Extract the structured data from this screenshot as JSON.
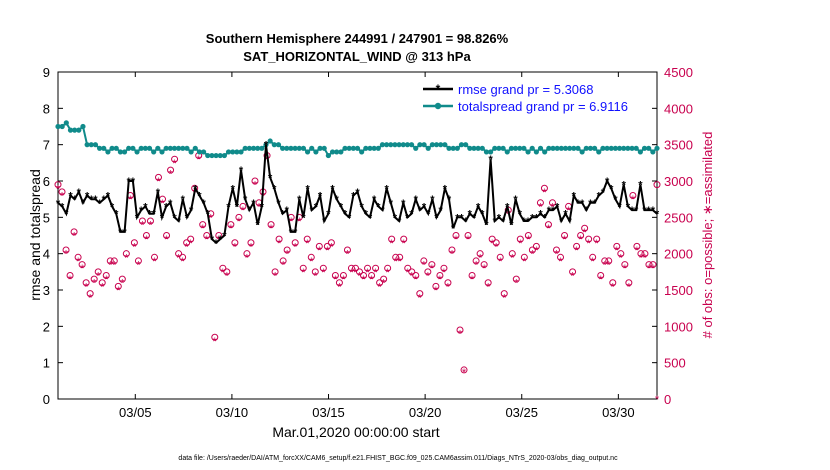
{
  "chart_data": {
    "type": "line",
    "title": "Southern Hemisphere 244991 / 247901 = 98.826%",
    "subtitle": "SAT_HORIZONTAL_WIND @ 313 hPa",
    "xlabel": "Mar.01,2020 00:00:00 start",
    "ylabel": "rmse and totalspread",
    "ylabel_right": "# of obs: o=possible; ∗=assimilated",
    "footnote": "data file: /Users/raeder/DAI/ATM_forcXX/CAM6_setup/f.e21.FHIST_BGC.f09_025.CAM6assim.011/Diags_NTrS_2020-03/obs_diag_output.nc",
    "xlim": [
      1,
      32
    ],
    "ylim": [
      0,
      9
    ],
    "ylim_right": [
      0,
      4500
    ],
    "x_ticks": [
      5,
      10,
      15,
      20,
      25,
      30
    ],
    "x_tick_labels": [
      "03/05",
      "03/10",
      "03/15",
      "03/20",
      "03/25",
      "03/30"
    ],
    "y_ticks": [
      0,
      1,
      2,
      3,
      4,
      5,
      6,
      7,
      8,
      9
    ],
    "y_ticks_right": [
      0,
      500,
      1000,
      1500,
      2000,
      2500,
      3000,
      3500,
      4000,
      4500
    ],
    "legend": [
      "rmse grand pr = 5.3068",
      "totalspread grand pr = 6.9116"
    ],
    "legend_position": "top-right",
    "colors": {
      "rmse": "#000000",
      "spread": "#108b8b",
      "obs": "#c8004e",
      "legend_text": "#1010ff"
    },
    "series": [
      {
        "name": "rmse",
        "values": [
          5.4,
          5.3,
          5.1,
          5.6,
          5.5,
          5.7,
          5.4,
          5.6,
          5.5,
          5.5,
          5.4,
          5.5,
          5.6,
          5.3,
          5.1,
          4.6,
          4.6,
          6.0,
          6.0,
          5.0,
          5.2,
          5.3,
          5.1,
          5.1,
          5.7,
          5.0,
          5.3,
          5.4,
          5.0,
          4.9,
          5.5,
          5.0,
          5.2,
          5.8,
          5.6,
          5.4,
          5.1,
          4.4,
          4.3,
          4.4,
          4.5,
          5.3,
          5.8,
          5.3,
          6.3,
          5.5,
          5.2,
          5.4,
          4.8,
          5.3,
          7.0,
          6.1,
          5.8,
          5.4,
          5.1,
          5.2,
          4.6,
          4.6,
          5.5,
          5.0,
          5.8,
          5.2,
          5.3,
          5.6,
          4.9,
          5.1,
          5.8,
          5.5,
          5.3,
          5.1,
          5.0,
          5.6,
          5.7,
          5.3,
          5.1,
          5.0,
          5.5,
          5.3,
          5.2,
          5.8,
          5.4,
          5.0,
          4.9,
          5.4,
          5.0,
          5.1,
          5.5,
          5.2,
          5.3,
          5.1,
          5.5,
          5.0,
          5.2,
          5.8,
          5.5,
          4.7,
          5.0,
          5.0,
          4.9,
          5.1,
          5.0,
          5.3,
          5.1,
          4.8,
          6.6,
          4.9,
          5.0,
          4.9,
          5.3,
          4.8,
          5.5,
          5.1,
          4.9,
          4.9,
          5.0,
          5.0,
          5.1,
          5.0,
          5.2,
          5.2,
          5.3,
          4.9,
          5.1,
          4.9,
          5.6,
          5.4,
          5.4,
          5.2,
          5.4,
          5.4,
          5.6,
          5.7,
          6.0,
          5.8,
          5.5,
          5.3,
          5.9,
          5.3,
          5.2,
          5.2,
          5.9,
          5.2,
          5.2,
          5.2,
          5.1
        ]
      },
      {
        "name": "totalspread",
        "values": [
          7.5,
          7.5,
          7.6,
          7.4,
          7.4,
          7.4,
          7.5,
          7.0,
          7.0,
          7.0,
          6.9,
          6.9,
          6.8,
          6.9,
          6.9,
          6.8,
          6.8,
          6.9,
          6.9,
          6.8,
          6.9,
          6.9,
          6.9,
          6.8,
          6.9,
          6.8,
          6.9,
          6.9,
          6.9,
          6.9,
          6.9,
          6.9,
          6.8,
          6.9,
          6.8,
          6.8,
          6.7,
          6.7,
          6.7,
          6.7,
          6.7,
          6.8,
          6.8,
          6.8,
          6.8,
          6.9,
          6.9,
          6.9,
          6.9,
          6.9,
          7.0,
          7.1,
          7.0,
          7.0,
          6.9,
          6.9,
          6.9,
          6.9,
          6.9,
          6.9,
          6.8,
          6.9,
          6.8,
          6.9,
          6.9,
          6.7,
          6.8,
          6.8,
          6.8,
          6.9,
          6.9,
          6.9,
          6.9,
          6.8,
          6.9,
          6.9,
          6.9,
          6.9,
          7.0,
          7.0,
          7.0,
          7.0,
          7.0,
          7.0,
          7.0,
          7.0,
          6.9,
          7.0,
          7.0,
          6.9,
          7.0,
          7.0,
          7.0,
          7.0,
          6.9,
          6.9,
          6.9,
          7.0,
          7.0,
          6.9,
          6.9,
          6.9,
          6.9,
          6.8,
          6.8,
          6.9,
          6.9,
          6.9,
          6.8,
          6.9,
          6.9,
          6.9,
          6.9,
          6.8,
          6.9,
          6.8,
          6.9,
          6.8,
          6.9,
          6.9,
          6.9,
          6.9,
          6.9,
          6.9,
          6.9,
          6.9,
          6.8,
          6.9,
          6.9,
          6.9,
          6.8,
          6.9,
          6.9,
          6.9,
          6.9,
          6.9,
          6.9,
          6.9,
          6.9,
          6.9,
          6.8,
          6.9,
          6.9,
          6.8,
          6.9
        ]
      },
      {
        "name": "obs possible",
        "axis": "right",
        "values": [
          2950,
          2850,
          2050,
          1700,
          2300,
          1950,
          1850,
          1600,
          1450,
          1650,
          1750,
          1600,
          1700,
          1900,
          1900,
          1550,
          1650,
          2000,
          2800,
          2150,
          1900,
          2450,
          2250,
          2450,
          1950,
          3050,
          2750,
          2250,
          3150,
          3300,
          2000,
          1950,
          2150,
          2200,
          2900,
          3350,
          2400,
          2250,
          2550,
          850,
          2250,
          1800,
          1750,
          2400,
          2150,
          2500,
          2650,
          2000,
          2150,
          3000,
          2700,
          2850,
          3350,
          2400,
          1750,
          2200,
          1900,
          2050,
          2500,
          2150,
          2500,
          1800,
          2200,
          1950,
          1750,
          2100,
          1800,
          2100,
          2150,
          1700,
          1600,
          1700,
          2050,
          1800,
          1800,
          1750,
          1700,
          1800,
          1700,
          1800,
          1600,
          1650,
          1800,
          2200,
          1950,
          1950,
          2200,
          1800,
          1750,
          1700,
          1450,
          1900,
          1750,
          1850,
          1550,
          1700,
          1800,
          1600,
          2050,
          2250,
          950,
          400,
          2250,
          1700,
          1900,
          2000,
          1850,
          1600,
          2200,
          2150,
          1950,
          1450,
          2600,
          2000,
          1650,
          2200,
          1950,
          2250,
          2050,
          2100,
          2700,
          2900,
          2400,
          2700,
          2050,
          1950,
          2250,
          2650,
          1750,
          2100,
          2250,
          2350,
          2200,
          1950,
          2200,
          1700,
          1900,
          1900,
          1600,
          2100,
          2000,
          1850,
          1600,
          2800,
          2100,
          2000,
          2000,
          1850,
          1850,
          2950
        ]
      },
      {
        "name": "obs assimilated",
        "axis": "right",
        "values": [
          2900,
          2800,
          2000,
          1650,
          2250,
          1900,
          1800,
          1550,
          1400,
          1600,
          1700,
          1550,
          1650,
          1850,
          1850,
          1500,
          1600,
          1950,
          2750,
          2100,
          1850,
          2400,
          2200,
          2400,
          1900,
          3000,
          2700,
          2200,
          3100,
          3250,
          1950,
          1900,
          2100,
          2150,
          2850,
          3300,
          2350,
          2200,
          2500,
          800,
          2200,
          1750,
          1700,
          2350,
          2100,
          2450,
          2600,
          1950,
          2100,
          2950,
          2650,
          2800,
          3300,
          2350,
          1700,
          2150,
          1850,
          2000,
          2450,
          2100,
          2450,
          1750,
          2150,
          1900,
          1700,
          2050,
          1750,
          2050,
          2100,
          1650,
          1550,
          1650,
          2000,
          1750,
          1750,
          1700,
          1650,
          1750,
          1650,
          1750,
          1550,
          1600,
          1750,
          2150,
          1900,
          1900,
          2150,
          1750,
          1700,
          1650,
          1400,
          1850,
          1700,
          1800,
          1500,
          1650,
          1750,
          1550,
          2000,
          2200,
          900,
          370,
          2200,
          1650,
          1850,
          1950,
          1800,
          1550,
          2150,
          2100,
          1900,
          1400,
          2550,
          1950,
          1600,
          2150,
          1900,
          2200,
          2000,
          2050,
          2650,
          2850,
          2350,
          2650,
          2000,
          1900,
          2200,
          2600,
          1700,
          2050,
          2200,
          2300,
          2150,
          1900,
          2150,
          1650,
          1850,
          1850,
          1550,
          2050,
          1950,
          1800,
          1550,
          2750,
          2050,
          1950,
          1950,
          1800,
          1800,
          0
        ]
      }
    ]
  }
}
